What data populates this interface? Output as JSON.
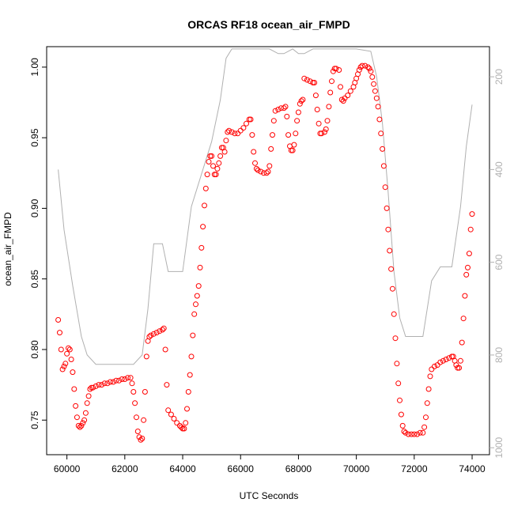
{
  "chart_data": {
    "type": "scatter",
    "title": "ORCAS RF18 ocean_air_FMPD",
    "xlabel": "UTC Seconds",
    "ylabel": "ocean_air_FMPD",
    "xlim": [
      59300,
      74600
    ],
    "ylim": [
      0.7255,
      1.0145
    ],
    "x_ticks": [
      60000,
      62000,
      64000,
      66000,
      68000,
      70000,
      72000,
      74000
    ],
    "x_tick_labels": [
      "60000",
      "62000",
      "64000",
      "66000",
      "68000",
      "70000",
      "72000",
      "74000"
    ],
    "y_ticks": [
      0.75,
      0.8,
      0.85,
      0.9,
      0.95,
      1.0
    ],
    "y_tick_labels": [
      "0.75",
      "0.80",
      "0.85",
      "0.90",
      "0.95",
      "1.00"
    ],
    "secondary_axis": {
      "position": "right",
      "color": "#b0b0b0",
      "reversed": true,
      "range": [
        1015,
        135
      ],
      "ticks": [
        200,
        400,
        600,
        800,
        1000
      ],
      "tick_labels": [
        "200",
        "400",
        "600",
        "800",
        "1000"
      ]
    },
    "series": [
      {
        "marker": "open-circle",
        "color": "#ff0000",
        "points": [
          [
            59700,
            0.821
          ],
          [
            59750,
            0.812
          ],
          [
            59800,
            0.8
          ],
          [
            59850,
            0.786
          ],
          [
            59900,
            0.788
          ],
          [
            59950,
            0.79
          ],
          [
            60000,
            0.797
          ],
          [
            60050,
            0.801
          ],
          [
            60100,
            0.8
          ],
          [
            60150,
            0.793
          ],
          [
            60200,
            0.784
          ],
          [
            60250,
            0.772
          ],
          [
            60300,
            0.76
          ],
          [
            60350,
            0.752
          ],
          [
            60400,
            0.746
          ],
          [
            60450,
            0.745
          ],
          [
            60500,
            0.746
          ],
          [
            60550,
            0.748
          ],
          [
            60600,
            0.75
          ],
          [
            60650,
            0.755
          ],
          [
            60700,
            0.762
          ],
          [
            60750,
            0.767
          ],
          [
            60800,
            0.772
          ],
          [
            60850,
            0.773
          ],
          [
            60900,
            0.773
          ],
          [
            61000,
            0.774
          ],
          [
            61100,
            0.775
          ],
          [
            61200,
            0.775
          ],
          [
            61300,
            0.776
          ],
          [
            61400,
            0.776
          ],
          [
            61500,
            0.777
          ],
          [
            61600,
            0.777
          ],
          [
            61700,
            0.778
          ],
          [
            61800,
            0.778
          ],
          [
            61900,
            0.779
          ],
          [
            62000,
            0.779
          ],
          [
            62100,
            0.78
          ],
          [
            62200,
            0.78
          ],
          [
            62250,
            0.776
          ],
          [
            62300,
            0.77
          ],
          [
            62350,
            0.762
          ],
          [
            62400,
            0.752
          ],
          [
            62450,
            0.742
          ],
          [
            62500,
            0.738
          ],
          [
            62550,
            0.736
          ],
          [
            62600,
            0.737
          ],
          [
            62650,
            0.75
          ],
          [
            62700,
            0.77
          ],
          [
            62750,
            0.795
          ],
          [
            62800,
            0.806
          ],
          [
            62850,
            0.809
          ],
          [
            62900,
            0.81
          ],
          [
            63000,
            0.811
          ],
          [
            63100,
            0.812
          ],
          [
            63200,
            0.813
          ],
          [
            63300,
            0.814
          ],
          [
            63350,
            0.815
          ],
          [
            63400,
            0.8
          ],
          [
            63450,
            0.775
          ],
          [
            63500,
            0.757
          ],
          [
            63600,
            0.754
          ],
          [
            63700,
            0.751
          ],
          [
            63800,
            0.748
          ],
          [
            63900,
            0.746
          ],
          [
            63950,
            0.745
          ],
          [
            64000,
            0.744
          ],
          [
            64050,
            0.744
          ],
          [
            64100,
            0.748
          ],
          [
            64150,
            0.758
          ],
          [
            64200,
            0.77
          ],
          [
            64250,
            0.782
          ],
          [
            64300,
            0.795
          ],
          [
            64350,
            0.81
          ],
          [
            64400,
            0.825
          ],
          [
            64450,
            0.832
          ],
          [
            64500,
            0.838
          ],
          [
            64550,
            0.845
          ],
          [
            64600,
            0.858
          ],
          [
            64650,
            0.872
          ],
          [
            64700,
            0.887
          ],
          [
            64750,
            0.902
          ],
          [
            64800,
            0.914
          ],
          [
            64850,
            0.924
          ],
          [
            64900,
            0.933
          ],
          [
            64950,
            0.937
          ],
          [
            65000,
            0.937
          ],
          [
            65050,
            0.93
          ],
          [
            65100,
            0.924
          ],
          [
            65150,
            0.924
          ],
          [
            65200,
            0.928
          ],
          [
            65250,
            0.932
          ],
          [
            65300,
            0.937
          ],
          [
            65350,
            0.943
          ],
          [
            65400,
            0.943
          ],
          [
            65450,
            0.94
          ],
          [
            65500,
            0.948
          ],
          [
            65550,
            0.954
          ],
          [
            65600,
            0.955
          ],
          [
            65700,
            0.954
          ],
          [
            65800,
            0.953
          ],
          [
            65900,
            0.953
          ],
          [
            66000,
            0.955
          ],
          [
            66100,
            0.957
          ],
          [
            66200,
            0.96
          ],
          [
            66300,
            0.963
          ],
          [
            66350,
            0.963
          ],
          [
            66400,
            0.952
          ],
          [
            66450,
            0.94
          ],
          [
            66500,
            0.932
          ],
          [
            66550,
            0.928
          ],
          [
            66600,
            0.927
          ],
          [
            66700,
            0.926
          ],
          [
            66800,
            0.925
          ],
          [
            66900,
            0.925
          ],
          [
            66950,
            0.926
          ],
          [
            67000,
            0.93
          ],
          [
            67050,
            0.942
          ],
          [
            67100,
            0.952
          ],
          [
            67150,
            0.962
          ],
          [
            67200,
            0.969
          ],
          [
            67300,
            0.97
          ],
          [
            67400,
            0.971
          ],
          [
            67500,
            0.971
          ],
          [
            67550,
            0.972
          ],
          [
            67600,
            0.965
          ],
          [
            67650,
            0.952
          ],
          [
            67700,
            0.944
          ],
          [
            67750,
            0.941
          ],
          [
            67800,
            0.941
          ],
          [
            67850,
            0.945
          ],
          [
            67900,
            0.953
          ],
          [
            67950,
            0.962
          ],
          [
            68000,
            0.968
          ],
          [
            68050,
            0.974
          ],
          [
            68100,
            0.976
          ],
          [
            68150,
            0.977
          ],
          [
            68200,
            0.992
          ],
          [
            68300,
            0.991
          ],
          [
            68400,
            0.99
          ],
          [
            68500,
            0.989
          ],
          [
            68550,
            0.989
          ],
          [
            68600,
            0.98
          ],
          [
            68650,
            0.97
          ],
          [
            68700,
            0.96
          ],
          [
            68750,
            0.953
          ],
          [
            68800,
            0.953
          ],
          [
            68900,
            0.954
          ],
          [
            68950,
            0.956
          ],
          [
            69000,
            0.962
          ],
          [
            69050,
            0.972
          ],
          [
            69100,
            0.982
          ],
          [
            69150,
            0.99
          ],
          [
            69200,
            0.997
          ],
          [
            69250,
            0.999
          ],
          [
            69300,
            0.999
          ],
          [
            69400,
            0.998
          ],
          [
            69450,
            0.986
          ],
          [
            69500,
            0.977
          ],
          [
            69550,
            0.976
          ],
          [
            69600,
            0.978
          ],
          [
            69700,
            0.98
          ],
          [
            69800,
            0.983
          ],
          [
            69900,
            0.986
          ],
          [
            69950,
            0.989
          ],
          [
            70000,
            0.992
          ],
          [
            70050,
            0.995
          ],
          [
            70100,
            0.998
          ],
          [
            70150,
            1.0
          ],
          [
            70200,
            1.001
          ],
          [
            70300,
            1.001
          ],
          [
            70400,
            1.0
          ],
          [
            70450,
            0.999
          ],
          [
            70500,
            0.997
          ],
          [
            70550,
            0.993
          ],
          [
            70600,
            0.988
          ],
          [
            70650,
            0.983
          ],
          [
            70700,
            0.978
          ],
          [
            70750,
            0.972
          ],
          [
            70800,
            0.963
          ],
          [
            70850,
            0.953
          ],
          [
            70900,
            0.942
          ],
          [
            70950,
            0.93
          ],
          [
            71000,
            0.915
          ],
          [
            71050,
            0.9
          ],
          [
            71100,
            0.885
          ],
          [
            71150,
            0.87
          ],
          [
            71200,
            0.857
          ],
          [
            71250,
            0.843
          ],
          [
            71300,
            0.825
          ],
          [
            71350,
            0.808
          ],
          [
            71400,
            0.79
          ],
          [
            71450,
            0.776
          ],
          [
            71500,
            0.764
          ],
          [
            71550,
            0.754
          ],
          [
            71600,
            0.746
          ],
          [
            71650,
            0.742
          ],
          [
            71700,
            0.741
          ],
          [
            71800,
            0.74
          ],
          [
            71900,
            0.74
          ],
          [
            72000,
            0.74
          ],
          [
            72100,
            0.74
          ],
          [
            72200,
            0.741
          ],
          [
            72300,
            0.741
          ],
          [
            72350,
            0.745
          ],
          [
            72400,
            0.752
          ],
          [
            72450,
            0.762
          ],
          [
            72500,
            0.772
          ],
          [
            72550,
            0.781
          ],
          [
            72600,
            0.786
          ],
          [
            72700,
            0.788
          ],
          [
            72800,
            0.789
          ],
          [
            72900,
            0.791
          ],
          [
            73000,
            0.792
          ],
          [
            73100,
            0.793
          ],
          [
            73200,
            0.794
          ],
          [
            73300,
            0.795
          ],
          [
            73350,
            0.795
          ],
          [
            73400,
            0.792
          ],
          [
            73450,
            0.789
          ],
          [
            73500,
            0.787
          ],
          [
            73550,
            0.787
          ],
          [
            73600,
            0.792
          ],
          [
            73650,
            0.805
          ],
          [
            73700,
            0.822
          ],
          [
            73750,
            0.838
          ],
          [
            73800,
            0.853
          ],
          [
            73850,
            0.858
          ],
          [
            73900,
            0.868
          ],
          [
            73950,
            0.885
          ],
          [
            74000,
            0.896
          ]
        ]
      },
      {
        "axis": "secondary",
        "marker": "line",
        "color": "#b0b0b0",
        "points": [
          [
            59700,
            400
          ],
          [
            59900,
            530
          ],
          [
            60200,
            650
          ],
          [
            60500,
            760
          ],
          [
            60700,
            800
          ],
          [
            61000,
            820
          ],
          [
            61500,
            820
          ],
          [
            62000,
            820
          ],
          [
            62300,
            820
          ],
          [
            62600,
            800
          ],
          [
            62800,
            700
          ],
          [
            63000,
            560
          ],
          [
            63300,
            560
          ],
          [
            63500,
            620
          ],
          [
            63700,
            620
          ],
          [
            64000,
            620
          ],
          [
            64300,
            480
          ],
          [
            64700,
            400
          ],
          [
            65000,
            340
          ],
          [
            65300,
            250
          ],
          [
            65500,
            160
          ],
          [
            65700,
            140
          ],
          [
            66000,
            140
          ],
          [
            66500,
            140
          ],
          [
            67000,
            140
          ],
          [
            67300,
            150
          ],
          [
            67500,
            150
          ],
          [
            67800,
            140
          ],
          [
            68000,
            150
          ],
          [
            68200,
            150
          ],
          [
            68500,
            140
          ],
          [
            68800,
            140
          ],
          [
            69000,
            140
          ],
          [
            69500,
            140
          ],
          [
            70000,
            140
          ],
          [
            70500,
            145
          ],
          [
            70700,
            200
          ],
          [
            70900,
            300
          ],
          [
            71100,
            450
          ],
          [
            71300,
            620
          ],
          [
            71500,
            720
          ],
          [
            71700,
            760
          ],
          [
            72000,
            760
          ],
          [
            72300,
            760
          ],
          [
            72600,
            640
          ],
          [
            72900,
            610
          ],
          [
            73300,
            610
          ],
          [
            73600,
            480
          ],
          [
            73800,
            350
          ],
          [
            74000,
            260
          ]
        ]
      }
    ]
  }
}
